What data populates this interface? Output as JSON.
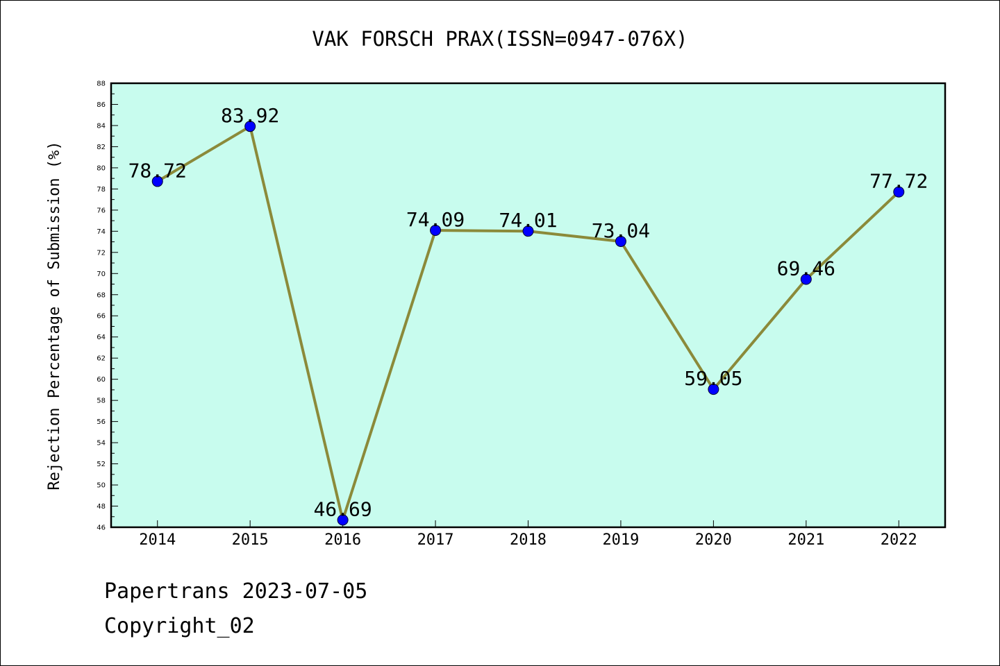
{
  "chart_data": {
    "type": "line",
    "title": "VAK FORSCH PRAX(ISSN=0947-076X)",
    "xlabel": "",
    "ylabel": "Rejection Percentage of Submission (%)",
    "categories": [
      "2014",
      "2015",
      "2016",
      "2017",
      "2018",
      "2019",
      "2020",
      "2021",
      "2022"
    ],
    "series": [
      {
        "values": [
          78.72,
          83.92,
          46.69,
          74.09,
          74.01,
          73.04,
          59.05,
          69.46,
          77.72
        ]
      }
    ],
    "data_labels": [
      "78.72",
      "83.92",
      "46.69",
      "74.09",
      "74.01",
      "73.04",
      "59.05",
      "69.46",
      "77.72"
    ],
    "ylim": [
      46,
      88
    ],
    "yticks": [
      46,
      48,
      50,
      52,
      54,
      56,
      58,
      60,
      62,
      64,
      66,
      68,
      70,
      72,
      74,
      76,
      78,
      80,
      82,
      84,
      86,
      88
    ],
    "grid": false,
    "colors": {
      "plot_background": "#c8fcee",
      "line": "#8b8a3a",
      "marker": "#0000ff"
    }
  },
  "footer": {
    "line1": "Papertrans 2023-07-05",
    "line2": "Copyright_02"
  }
}
